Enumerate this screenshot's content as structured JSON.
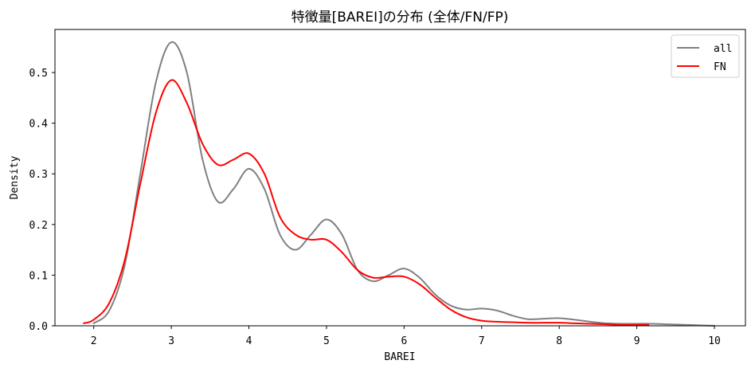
{
  "chart_data": {
    "type": "line",
    "title": "特徴量[BAREI]の分布 (全体/FN/FP)",
    "xlabel": "BAREI",
    "ylabel": "Density",
    "xlim": [
      1.5,
      10.4
    ],
    "ylim": [
      0,
      0.585
    ],
    "xticks": [
      2,
      3,
      4,
      5,
      6,
      7,
      8,
      9,
      10
    ],
    "yticks": [
      0.0,
      0.1,
      0.2,
      0.3,
      0.4,
      0.5
    ],
    "grid": false,
    "legend_position": "top-right",
    "series": [
      {
        "name": "all",
        "color": "#808080",
        "x": [
          2.0,
          2.2,
          2.4,
          2.6,
          2.8,
          3.0,
          3.2,
          3.4,
          3.6,
          3.8,
          4.0,
          4.2,
          4.4,
          4.6,
          4.8,
          5.0,
          5.2,
          5.4,
          5.6,
          5.8,
          6.0,
          6.2,
          6.4,
          6.6,
          6.8,
          7.0,
          7.2,
          7.4,
          7.6,
          7.8,
          8.0,
          8.2,
          8.4,
          8.6,
          8.8,
          9.0,
          9.2,
          9.4,
          9.6,
          9.8,
          10.0
        ],
        "values": [
          0.005,
          0.03,
          0.12,
          0.3,
          0.48,
          0.56,
          0.5,
          0.33,
          0.245,
          0.27,
          0.31,
          0.27,
          0.18,
          0.15,
          0.18,
          0.21,
          0.18,
          0.11,
          0.088,
          0.1,
          0.113,
          0.095,
          0.062,
          0.04,
          0.032,
          0.034,
          0.03,
          0.02,
          0.013,
          0.014,
          0.015,
          0.012,
          0.008,
          0.005,
          0.004,
          0.004,
          0.004,
          0.003,
          0.002,
          0.001,
          0.0
        ]
      },
      {
        "name": "FN",
        "color": "#ff0000",
        "x": [
          1.87,
          2.0,
          2.2,
          2.4,
          2.6,
          2.8,
          3.0,
          3.2,
          3.4,
          3.6,
          3.8,
          4.0,
          4.2,
          4.4,
          4.6,
          4.8,
          5.0,
          5.2,
          5.4,
          5.6,
          5.8,
          6.0,
          6.2,
          6.4,
          6.6,
          6.8,
          7.0,
          7.2,
          7.4,
          7.6,
          7.8,
          8.0,
          8.2,
          8.4,
          8.6,
          8.8,
          9.0,
          9.15
        ],
        "values": [
          0.005,
          0.012,
          0.045,
          0.13,
          0.28,
          0.42,
          0.485,
          0.44,
          0.36,
          0.318,
          0.328,
          0.34,
          0.3,
          0.215,
          0.18,
          0.17,
          0.17,
          0.145,
          0.11,
          0.095,
          0.097,
          0.097,
          0.082,
          0.056,
          0.032,
          0.017,
          0.01,
          0.008,
          0.007,
          0.006,
          0.006,
          0.006,
          0.005,
          0.004,
          0.003,
          0.002,
          0.002,
          0.002
        ]
      }
    ]
  }
}
